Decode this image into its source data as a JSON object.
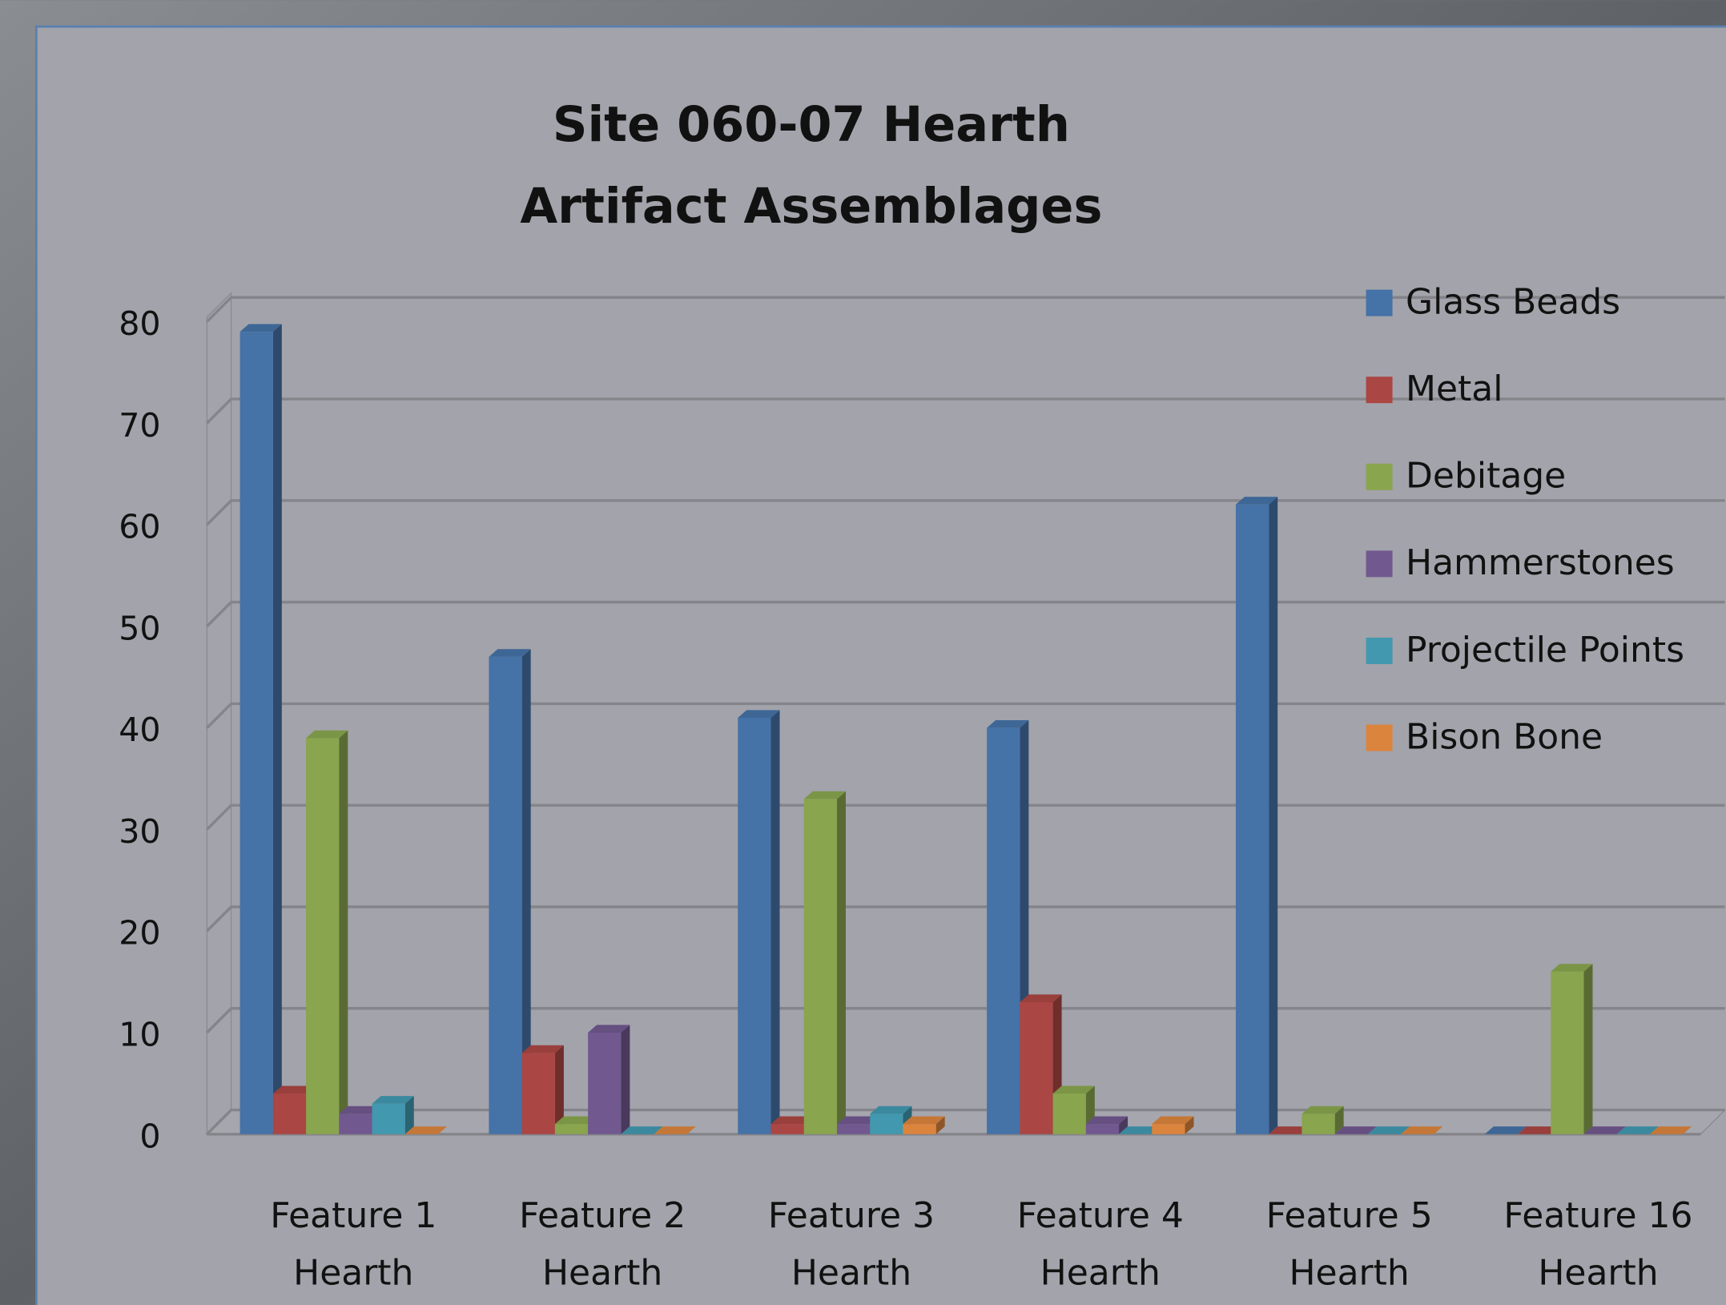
{
  "chart_data": {
    "type": "bar",
    "title": [
      "Site 060-07 Hearth",
      "Artifact Assemblages"
    ],
    "categories": [
      [
        "Feature 1",
        "Hearth"
      ],
      [
        "Feature 2",
        "Hearth"
      ],
      [
        "Feature 3",
        "Hearth"
      ],
      [
        "Feature 4",
        "Hearth"
      ],
      [
        "Feature 5",
        "Hearth"
      ],
      [
        "Feature 16",
        "Hearth"
      ]
    ],
    "series": [
      {
        "name": "Glass Beads",
        "color": "#4572a7",
        "values": [
          79,
          47,
          41,
          40,
          62,
          0
        ]
      },
      {
        "name": "Metal",
        "color": "#aa4643",
        "values": [
          4,
          8,
          1,
          13,
          0,
          0
        ]
      },
      {
        "name": "Debitage",
        "color": "#89a54e",
        "values": [
          39,
          1,
          33,
          4,
          2,
          16
        ]
      },
      {
        "name": "Hammerstones",
        "color": "#71588f",
        "values": [
          2,
          10,
          1,
          1,
          0,
          0
        ]
      },
      {
        "name": "Projectile Points",
        "color": "#4198af",
        "values": [
          3,
          0,
          2,
          0,
          0,
          0
        ]
      },
      {
        "name": "Bison Bone",
        "color": "#db843d",
        "values": [
          0,
          0,
          1,
          1,
          0,
          0
        ]
      }
    ],
    "ylim": [
      0,
      80
    ],
    "yticks": [
      0,
      10,
      20,
      30,
      40,
      50,
      60,
      70,
      80
    ],
    "grid": true,
    "legend": "right"
  }
}
